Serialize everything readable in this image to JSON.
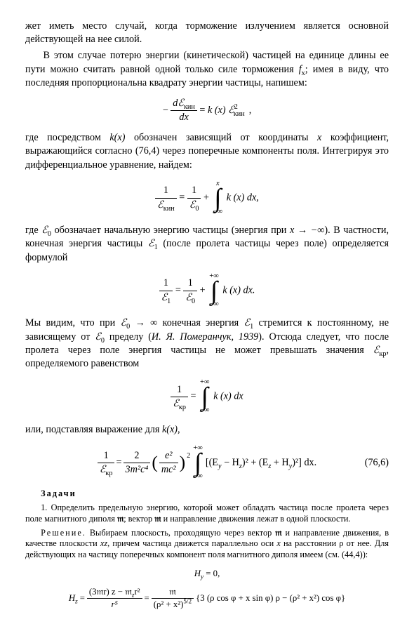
{
  "p1": "жет иметь место случай, когда торможение излучением является основной действующей на нее силой.",
  "p2_a": "В этом случае потерю энергии (кинетической) частицей на единице длины ее пути можно считать равной одной только силе торможения ",
  "p2_fx": "f",
  "p2_fx_sub": "x",
  "p2_b": "; имея в виду, что последняя пропорциональна квадрату энергии частицы, напишем:",
  "eq1": {
    "minus": "−",
    "num": "dℰ",
    "num_sub": "кин",
    "den": "dx",
    "eq": " = ",
    "rhs_a": "k (x) ℰ",
    "rhs_exp": "2",
    "rhs_sub": "кин",
    "comma": ","
  },
  "p3_a": "где посредством ",
  "p3_kx": "k(x)",
  "p3_b": " обозначен зависящий от координаты ",
  "p3_x": "x",
  "p3_c": " коэффициент, выражающийся согласно (76,4) через поперечные компоненты поля. Интегрируя это дифференциальное уравнение, найдем:",
  "eq2": {
    "l_num": "1",
    "l_den_s": "ℰ",
    "l_den_sub": "кин",
    "eq1": " = ",
    "m_num": "1",
    "m_den_s": "ℰ",
    "m_den_sub": "0",
    "plus": " + ",
    "int_top": "x",
    "int_bot": "−∞",
    "body": "k (x) dx,"
  },
  "p4_a": "где ",
  "p4_E0": "ℰ",
  "p4_E0_sub": "0",
  "p4_b": " обозначает начальную энергию частицы (энергия при ",
  "p4_lim": "x → −∞",
  "p4_c": "). В частности, конечная энергия частицы ",
  "p4_E1": "ℰ",
  "p4_E1_sub": "1",
  "p4_d": " (после пролета частицы через поле) определяется формулой",
  "eq3": {
    "l_num": "1",
    "l_den_s": "ℰ",
    "l_den_sub": "1",
    "eq1": " = ",
    "m_num": "1",
    "m_den_s": "ℰ",
    "m_den_sub": "0",
    "plus": " + ",
    "int_top": "+∞",
    "int_bot": "−∞",
    "body": "k (x) dx."
  },
  "p5_a": "Мы видим, что при ",
  "p5_cond": "ℰ",
  "p5_cond_sub": "0",
  "p5_arrow": " → ∞",
  "p5_b": " конечная энергия ",
  "p5_E1": "ℰ",
  "p5_E1_sub": "1",
  "p5_c": " стремится к постоянному, не зависящему от ",
  "p5_E0b": "ℰ",
  "p5_E0b_sub": "0",
  "p5_d": " пределу (",
  "p5_ref": "И. Я. Померанчук, 1939",
  "p5_e": "). Отсюда следует, что после пролета через поле энергия частицы не может превышать значения ",
  "p5_Ekr": "ℰ",
  "p5_Ekr_sub": "кр",
  "p5_f": ", определяемого равенством",
  "eq4": {
    "l_num": "1",
    "l_den_s": "ℰ",
    "l_den_sub": "кр",
    "eq1": " = ",
    "int_top": "+∞",
    "int_bot": "−∞",
    "body": "k (x) dx"
  },
  "p6_a": "или, подставляя выражение для ",
  "p6_kx": "k(x)",
  "p6_b": ",",
  "eq5": {
    "l_num": "1",
    "l_den_s": "ℰ",
    "l_den_sub": "кр",
    "eq1": " = ",
    "f2_num": "2",
    "f2_den": "3m²c⁴",
    "lp": "(",
    "f3_num": "e²",
    "f3_den": "mc²",
    "rp": ")",
    "exp2": "2",
    "int_top": "+∞",
    "int_bot": "−∞",
    "body": "[(E",
    "Ey_sub": "y",
    "mid1": " − H",
    "Hz_sub": "z",
    "mid2": ")² + (E",
    "Ez_sub": "z",
    "mid3": " + H",
    "Hy_sub": "y",
    "mid4": ")²] dx.",
    "eqnum": "(76,6)"
  },
  "tasks_title": "Задачи",
  "t1_a": "1. Определить предельную энергию, которой может обладать частица после пролета через поле магнитного диполя ",
  "t1_m": "𝔪",
  "t1_b": "; вектор ",
  "t1_m2": "𝔪",
  "t1_c": " и направление движения лежат в одной плоскости.",
  "sol_label": "Решение.",
  "sol_a": " Выбираем плоскость, проходящую через вектор ",
  "sol_m": "𝔪",
  "sol_b": " и направление движения, в качестве плоскости ",
  "sol_xz": "xz",
  "sol_c": ", причем частица движется параллельно оси ",
  "sol_x": "x",
  "sol_d": " на расстоянии ρ от нее. Для действующих на частицу поперечных компонент поля магнитного диполя имеем (см. (44,4)):",
  "eq6_a": "H",
  "eq6_a_sub": "y",
  "eq6_a_rhs": " = 0,",
  "eq7": {
    "lhs": "H",
    "lhs_sub": "z",
    "eq1": " = ",
    "f1_num_a": "(3𝔪r) z − 𝔪",
    "f1_num_sub": "z",
    "f1_num_b": "r²",
    "f1_den": "r⁵",
    "eq2": " = ",
    "f2_num": "𝔪",
    "f2_den": "(ρ² + x²)",
    "f2_den_exp": "5/2",
    "body": " {3 (ρ cos φ + x sin φ) ρ − (ρ² + x²) cos φ}"
  }
}
